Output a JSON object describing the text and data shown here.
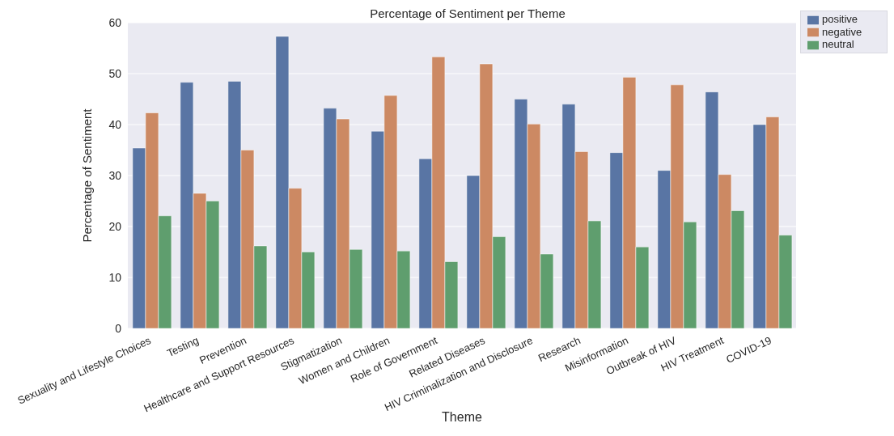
{
  "chart_data": {
    "type": "bar",
    "title": "Percentage of Sentiment per Theme",
    "xlabel": "Theme",
    "ylabel": "Percentage of Sentiment",
    "categories": [
      "Sexuality and Lifestyle Choices",
      "Testing",
      "Prevention",
      "Healthcare and Support Resources",
      "Stigmatization",
      "Women and Children",
      "Role of Government",
      "Related Diseases",
      "HIV Criminalization and Disclosure",
      "Research",
      "Misinformation",
      "Outbreak of HIV",
      "HIV Treatment",
      "COVID-19"
    ],
    "series": [
      {
        "name": "positive",
        "color": "#5975a4",
        "values": [
          35.4,
          48.3,
          48.5,
          57.3,
          43.2,
          38.7,
          33.3,
          30.0,
          45.0,
          44.0,
          34.5,
          31.0,
          46.4,
          40.0
        ]
      },
      {
        "name": "negative",
        "color": "#cc8963",
        "values": [
          42.3,
          26.5,
          35.0,
          27.5,
          41.1,
          45.7,
          53.3,
          51.9,
          40.1,
          34.7,
          49.3,
          47.8,
          30.2,
          41.5
        ]
      },
      {
        "name": "neutral",
        "color": "#5f9e6e",
        "values": [
          22.1,
          25.0,
          16.2,
          15.0,
          15.5,
          15.2,
          13.1,
          18.0,
          14.6,
          21.1,
          16.0,
          20.9,
          23.1,
          18.3
        ]
      }
    ],
    "ylim": [
      0,
      60
    ],
    "yticks": [
      0,
      10,
      20,
      30,
      40,
      50,
      60
    ],
    "grid": "y",
    "legend": "top right"
  }
}
